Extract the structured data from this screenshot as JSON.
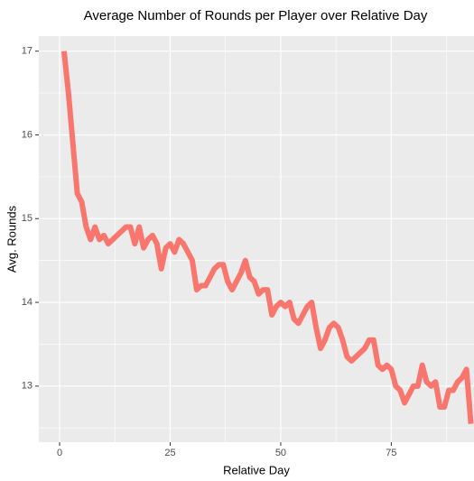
{
  "chart_data": {
    "type": "line",
    "title": "Average Number of Rounds per Player over Relative Day",
    "x_label": "Relative Day",
    "y_label": "Avg. Rounds",
    "x": [
      1,
      2,
      3,
      4,
      5,
      6,
      7,
      8,
      9,
      10,
      11,
      12,
      13,
      14,
      15,
      16,
      17,
      18,
      19,
      20,
      21,
      22,
      23,
      24,
      25,
      26,
      27,
      28,
      29,
      30,
      31,
      32,
      33,
      34,
      35,
      36,
      37,
      38,
      39,
      40,
      41,
      42,
      43,
      44,
      45,
      46,
      47,
      48,
      49,
      50,
      51,
      52,
      53,
      54,
      55,
      56,
      57,
      58,
      59,
      60,
      61,
      62,
      63,
      64,
      65,
      66,
      67,
      68,
      69,
      70,
      71,
      72,
      73,
      74,
      75,
      76,
      77,
      78,
      79,
      80,
      81,
      82,
      83,
      84,
      85,
      86,
      87,
      88,
      89,
      90,
      91,
      92,
      93
    ],
    "series": [
      {
        "name": "Avg. Rounds",
        "color": "#f8766d",
        "values": [
          17.0,
          16.5,
          15.9,
          15.3,
          15.2,
          14.9,
          14.75,
          14.9,
          14.75,
          14.8,
          14.7,
          14.75,
          14.8,
          14.85,
          14.9,
          14.9,
          14.7,
          14.9,
          14.65,
          14.75,
          14.8,
          14.7,
          14.4,
          14.65,
          14.7,
          14.6,
          14.75,
          14.7,
          14.6,
          14.5,
          14.15,
          14.2,
          14.2,
          14.3,
          14.4,
          14.45,
          14.45,
          14.25,
          14.15,
          14.25,
          14.35,
          14.5,
          14.3,
          14.25,
          14.1,
          14.15,
          14.15,
          13.85,
          13.95,
          14.0,
          13.95,
          14.0,
          13.8,
          13.75,
          13.85,
          13.95,
          14.0,
          13.7,
          13.45,
          13.55,
          13.7,
          13.75,
          13.7,
          13.55,
          13.35,
          13.3,
          13.35,
          13.4,
          13.45,
          13.55,
          13.55,
          13.25,
          13.2,
          13.25,
          13.2,
          13.0,
          12.95,
          12.8,
          12.9,
          13.0,
          13.0,
          13.25,
          13.05,
          13.0,
          13.05,
          12.75,
          12.75,
          12.95,
          12.95,
          13.05,
          13.1,
          13.2,
          12.55
        ]
      }
    ],
    "xlim": [
      -4.7,
      93.7
    ],
    "xticks": [
      0,
      25,
      50,
      75
    ],
    "ylim": [
      12.33,
      17.18
    ],
    "yticks": [
      13,
      14,
      15,
      16,
      17
    ],
    "grid": true
  }
}
